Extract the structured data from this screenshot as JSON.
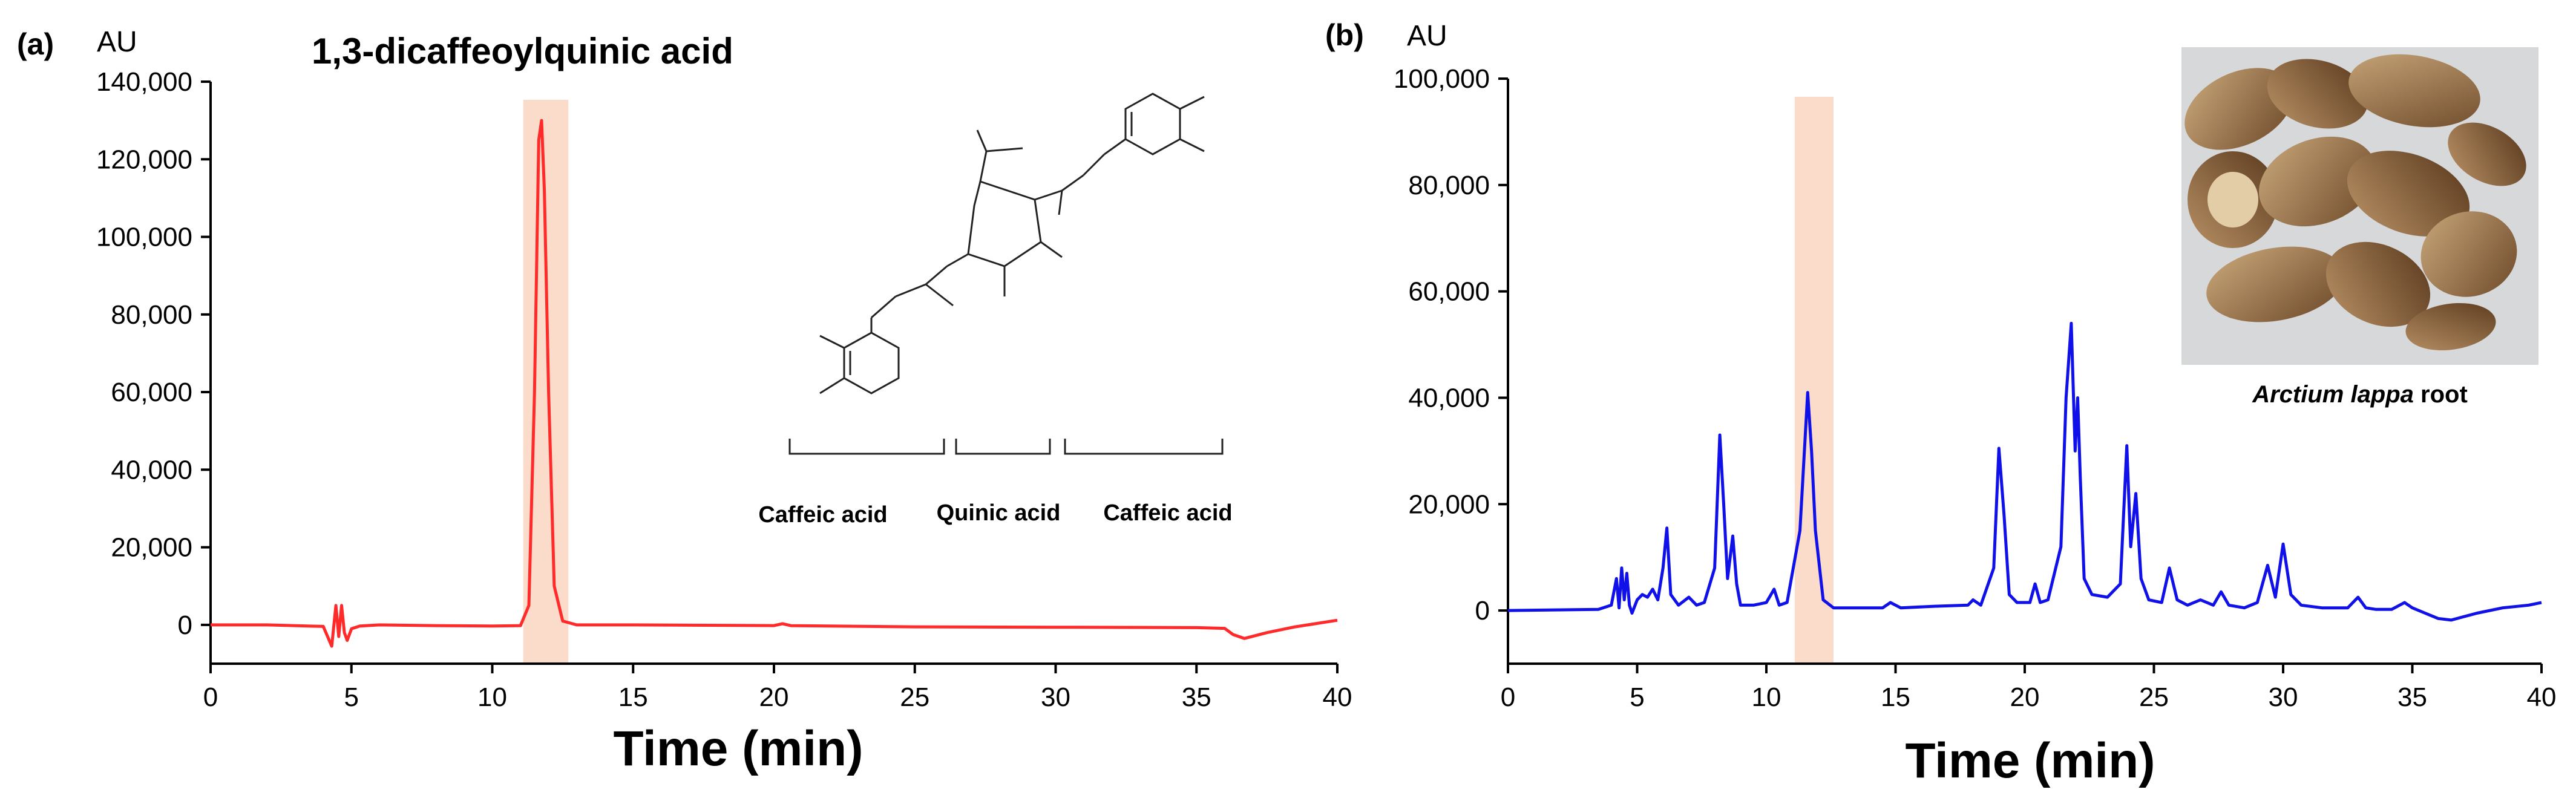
{
  "figure": {
    "panel_a": {
      "panel_label": "(a)",
      "unit_label": "AU",
      "title": "1,3-dicaffeoylquinic acid",
      "xlabel": "Time (min)",
      "structure_labels": [
        "Caffeic acid",
        "Quinic acid",
        "Caffeic acid"
      ],
      "line_color": "#ff2a2a",
      "highlight_color": "#fbdccb"
    },
    "panel_b": {
      "panel_label": "(b)",
      "unit_label": "AU",
      "xlabel": "Time (min)",
      "photo_caption_italic": "Arctium lappa",
      "photo_caption_rest": " root",
      "line_color": "#1010e8",
      "highlight_color": "#fbdccb"
    }
  },
  "chart_data": [
    {
      "type": "line",
      "title": "1,3-dicaffeoylquinic acid",
      "xlabel": "Time (min)",
      "ylabel": "AU",
      "xlim": [
        0,
        40
      ],
      "ylim": [
        -10000,
        140000
      ],
      "xticks": [
        0,
        5,
        10,
        15,
        20,
        25,
        30,
        35,
        40
      ],
      "yticks": [
        0,
        20000,
        40000,
        60000,
        80000,
        100000,
        120000,
        140000
      ],
      "ytick_labels": [
        "0",
        "20,000",
        "40,000",
        "60,000",
        "80,000",
        "100,000",
        "120,000",
        "140,000"
      ],
      "highlight_range": [
        11.1,
        12.7
      ],
      "series": [
        {
          "x": [
            0,
            2,
            4.0,
            4.3,
            4.45,
            4.55,
            4.65,
            4.75,
            4.85,
            5.0,
            5.3,
            6,
            8,
            10,
            11.0,
            11.3,
            11.5,
            11.65,
            11.75,
            11.85,
            12.0,
            12.2,
            12.5,
            13,
            15,
            20,
            20.3,
            20.6,
            25,
            30,
            35,
            36.0,
            36.3,
            36.7,
            37.5,
            38.5,
            40
          ],
          "y": [
            0,
            0,
            -400,
            -5500,
            5000,
            -3000,
            5000,
            -2000,
            -4000,
            -1000,
            -300,
            0,
            -200,
            -300,
            -200,
            5000,
            60000,
            125000,
            130000,
            112000,
            60000,
            10000,
            1000,
            0,
            0,
            -200,
            300,
            -200,
            -500,
            -600,
            -700,
            -900,
            -2500,
            -3500,
            -2000,
            -500,
            1200
          ]
        }
      ]
    },
    {
      "type": "line",
      "xlabel": "Time (min)",
      "ylabel": "AU",
      "xlim": [
        0,
        40
      ],
      "ylim": [
        -10000,
        100000
      ],
      "xticks": [
        0,
        5,
        10,
        15,
        20,
        25,
        30,
        35,
        40
      ],
      "yticks": [
        0,
        20000,
        40000,
        60000,
        80000,
        100000
      ],
      "ytick_labels": [
        "0",
        "20,000",
        "40,000",
        "60,000",
        "80,000",
        "100,000"
      ],
      "highlight_range": [
        11.1,
        12.6
      ],
      "series": [
        {
          "x": [
            0,
            3.5,
            4.0,
            4.2,
            4.3,
            4.4,
            4.5,
            4.6,
            4.7,
            4.8,
            5.0,
            5.2,
            5.4,
            5.6,
            5.8,
            6.0,
            6.15,
            6.3,
            6.6,
            7.0,
            7.3,
            7.6,
            8.0,
            8.2,
            8.35,
            8.5,
            8.7,
            8.85,
            9.0,
            9.5,
            10.0,
            10.3,
            10.5,
            10.8,
            11.3,
            11.6,
            11.75,
            11.9,
            12.2,
            12.6,
            13.5,
            14.5,
            14.8,
            15.2,
            16.5,
            17.8,
            18.0,
            18.3,
            18.8,
            19.0,
            19.2,
            19.4,
            19.7,
            20.2,
            20.4,
            20.6,
            20.9,
            21.2,
            21.4,
            21.6,
            21.8,
            21.95,
            22.05,
            22.15,
            22.3,
            22.6,
            23.2,
            23.7,
            23.95,
            24.1,
            24.3,
            24.5,
            24.8,
            25.3,
            25.6,
            25.9,
            26.3,
            26.8,
            27.3,
            27.6,
            27.9,
            28.5,
            29.0,
            29.4,
            29.7,
            30.0,
            30.3,
            30.7,
            31.5,
            32.5,
            32.9,
            33.2,
            33.6,
            34.2,
            34.7,
            35.0,
            35.5,
            36.0,
            36.5,
            37.5,
            38.5,
            39.5,
            40
          ],
          "y": [
            0,
            200,
            1000,
            6000,
            500,
            8000,
            2000,
            7000,
            1000,
            -500,
            2000,
            3000,
            2500,
            4000,
            2000,
            8000,
            15500,
            3000,
            1000,
            2500,
            1000,
            1500,
            8000,
            33000,
            20000,
            6000,
            14000,
            5000,
            1000,
            1000,
            1500,
            4000,
            1000,
            1500,
            15000,
            41000,
            30000,
            15000,
            2000,
            500,
            500,
            500,
            1500,
            500,
            800,
            1000,
            2000,
            1000,
            8000,
            30500,
            18000,
            3000,
            1500,
            1500,
            5000,
            1500,
            2000,
            8000,
            12000,
            40000,
            54000,
            30000,
            40000,
            25000,
            6000,
            3000,
            2500,
            5000,
            31000,
            12000,
            22000,
            6000,
            2000,
            1500,
            8000,
            2000,
            1000,
            2000,
            1000,
            3500,
            1000,
            500,
            1500,
            8500,
            2500,
            12500,
            3000,
            1000,
            500,
            500,
            2500,
            500,
            200,
            200,
            1500,
            500,
            -500,
            -1500,
            -1800,
            -500,
            500,
            1000,
            1500
          ]
        }
      ]
    }
  ]
}
